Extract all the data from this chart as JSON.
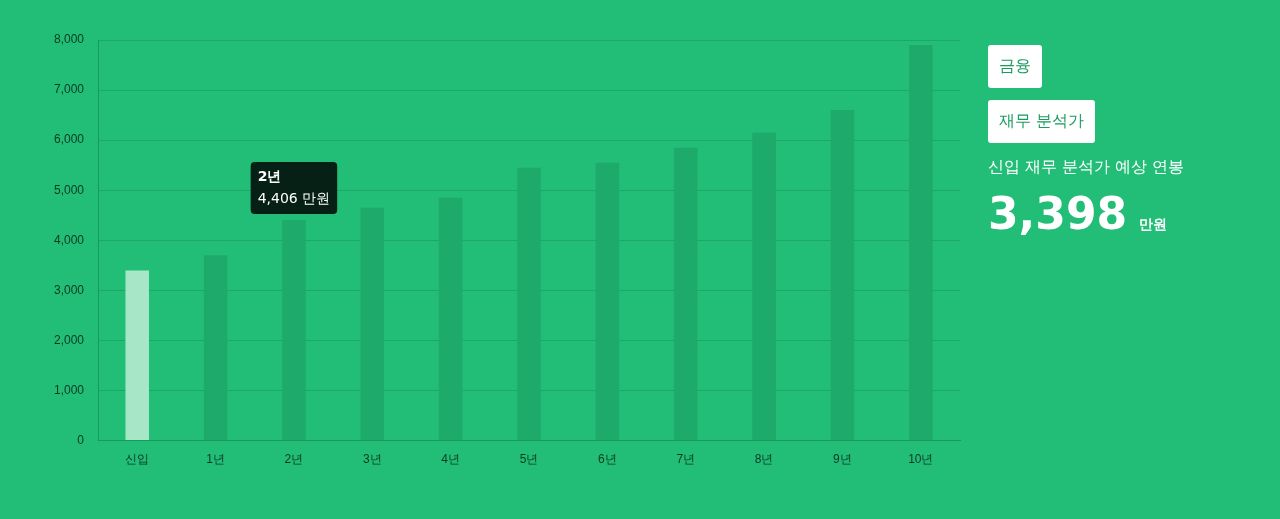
{
  "chart_data": {
    "type": "bar",
    "categories": [
      "신입",
      "1년",
      "2년",
      "3년",
      "4년",
      "5년",
      "6년",
      "7년",
      "8년",
      "9년",
      "10년"
    ],
    "values": [
      3398,
      3700,
      4406,
      4650,
      4850,
      5450,
      5550,
      5850,
      6150,
      6600,
      7900
    ],
    "colors": [
      "#a8e6c8",
      "#1eaa6b",
      "#1eaa6b",
      "#1eaa6b",
      "#1eaa6b",
      "#1eaa6b",
      "#1eaa6b",
      "#1eaa6b",
      "#1eaa6b",
      "#1eaa6b",
      "#1eaa6b"
    ],
    "ylim": [
      0,
      8000
    ],
    "yticks": [
      {
        "value": 0,
        "label": "0"
      },
      {
        "value": 1000,
        "label": "1,000"
      },
      {
        "value": 2000,
        "label": "2,000"
      },
      {
        "value": 3000,
        "label": "3,000"
      },
      {
        "value": 4000,
        "label": "4,000"
      },
      {
        "value": 5000,
        "label": "5,000"
      },
      {
        "value": 6000,
        "label": "6,000"
      },
      {
        "value": 7000,
        "label": "7,000"
      },
      {
        "value": 8000,
        "label": "8,000"
      }
    ],
    "grid": "y",
    "legend": false,
    "annotations": [
      {
        "text": "2년\n4,406 만원",
        "x": "2년",
        "y": 4406
      },
      "금융",
      "재무 분석가",
      "신입 재무 분석가 예상 연봉",
      "3,398",
      "만원"
    ]
  }
}
